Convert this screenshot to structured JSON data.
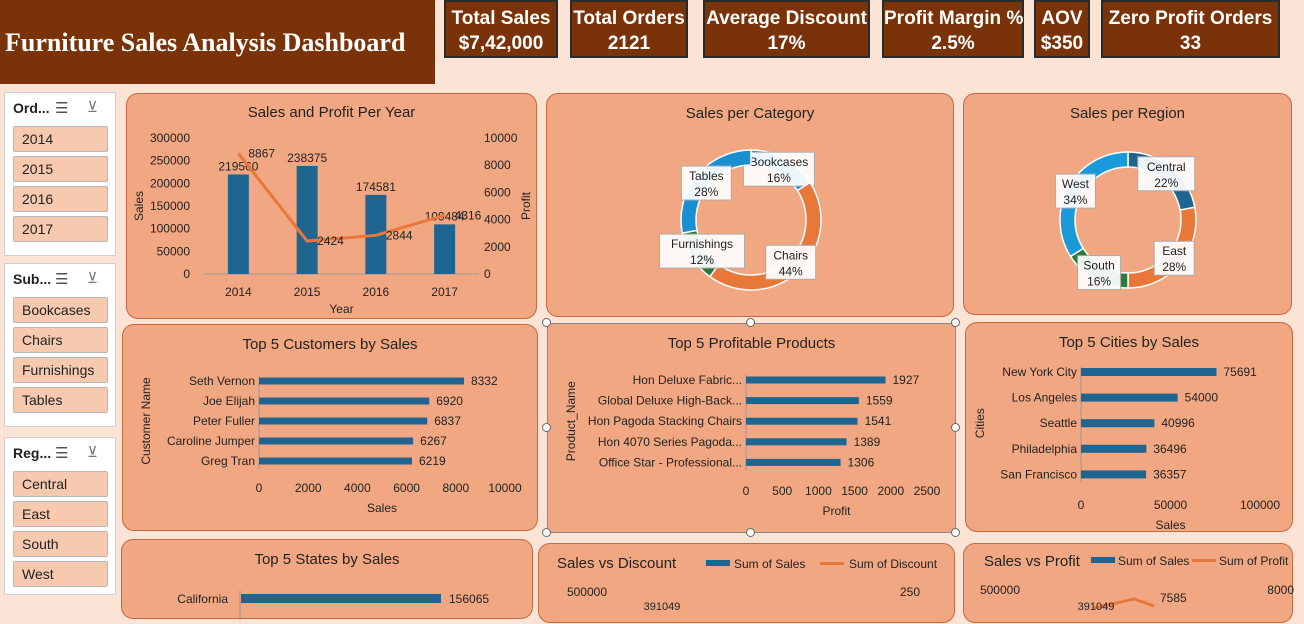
{
  "dashboard": {
    "title": "Furniture Sales Analysis Dashboard",
    "colors": {
      "header": "#7a3208",
      "panel": "#f1a882",
      "bar": "#1f6591",
      "line": "#e8773a",
      "background": "#fbe3d5"
    }
  },
  "kpis": [
    {
      "label": "Total Sales",
      "value": "$7,42,000"
    },
    {
      "label": "Total Orders",
      "value": "2121"
    },
    {
      "label": "Average Discount",
      "value": "17%"
    },
    {
      "label": "Profit Margin %",
      "value": "2.5%"
    },
    {
      "label": "AOV",
      "value": "$350"
    },
    {
      "label": "Zero Profit Orders",
      "value": "33"
    }
  ],
  "slicers": {
    "order": {
      "title": "Ord...",
      "items": [
        "2014",
        "2015",
        "2016",
        "2017"
      ],
      "icons": [
        "multi-select-icon",
        "clear-filter-icon"
      ]
    },
    "subcategory": {
      "title": "Sub...",
      "items": [
        "Bookcases",
        "Chairs",
        "Furnishings",
        "Tables"
      ],
      "icons": [
        "multi-select-icon",
        "clear-filter-icon"
      ]
    },
    "region": {
      "title": "Reg...",
      "items": [
        "Central",
        "East",
        "South",
        "West"
      ],
      "icons": [
        "multi-select-icon",
        "clear-filter-icon"
      ]
    }
  },
  "chart_data": [
    {
      "type": "bar",
      "title": "Sales and Profit Per Year",
      "xlabel": "Year",
      "ylabel": "Sales",
      "y2label": "Profit",
      "categories": [
        "2014",
        "2015",
        "2016",
        "2017"
      ],
      "series": [
        {
          "name": "Sales",
          "type": "bar",
          "values": [
            219560,
            238375,
            174581,
            109484
          ]
        },
        {
          "name": "Profit",
          "type": "line",
          "axis": "secondary",
          "values": [
            8867,
            2424,
            2844,
            4316
          ]
        }
      ],
      "ylim": [
        0,
        300000
      ],
      "y2lim": [
        0,
        10000
      ],
      "yticks": [
        "300000",
        "250000",
        "200000",
        "150000",
        "100000",
        "50000",
        "0"
      ],
      "y2ticks": [
        "10000",
        "8000",
        "6000",
        "4000",
        "2000",
        "0"
      ]
    },
    {
      "type": "pie",
      "title": "Sales per Category",
      "labels": [
        "Bookcases",
        "Chairs",
        "Furnishings",
        "Tables"
      ],
      "values": [
        16,
        44,
        12,
        28
      ],
      "value_labels": [
        "16%",
        "44%",
        "12%",
        "28%"
      ]
    },
    {
      "type": "pie",
      "title": "Sales per Region",
      "labels": [
        "Central",
        "East",
        "South",
        "West"
      ],
      "values": [
        22,
        28,
        16,
        34
      ],
      "value_labels": [
        "22%",
        "28%",
        "16%",
        "34%"
      ]
    },
    {
      "type": "bar",
      "orientation": "horizontal",
      "title": "Top 5 Customers by Sales",
      "xlabel": "Sales",
      "ylabel": "Customer Name",
      "categories": [
        "Seth Vernon",
        "Joe Elijah",
        "Peter Fuller",
        "Caroline Jumper",
        "Greg Tran"
      ],
      "values": [
        8332,
        6920,
        6837,
        6267,
        6219
      ],
      "xlim": [
        0,
        10000
      ],
      "xticks": [
        "0",
        "2000",
        "4000",
        "6000",
        "8000",
        "10000"
      ]
    },
    {
      "type": "bar",
      "orientation": "horizontal",
      "title": "Top 5 Profitable Products",
      "xlabel": "Profit",
      "ylabel": "Product_Name",
      "categories": [
        "Hon Deluxe Fabric...",
        "Global Deluxe High-Back...",
        "Hon Pagoda Stacking Chairs",
        "Hon 4070 Series Pagoda...",
        "Office Star - Professional..."
      ],
      "values": [
        1927,
        1559,
        1541,
        1389,
        1306
      ],
      "xlim": [
        0,
        2500
      ],
      "xticks": [
        "0",
        "500",
        "1000",
        "1500",
        "2000",
        "2500"
      ]
    },
    {
      "type": "bar",
      "orientation": "horizontal",
      "title": "Top 5 Cities by Sales",
      "xlabel": "Sales",
      "ylabel": "Cities",
      "categories": [
        "New York City",
        "Los Angeles",
        "Seattle",
        "Philadelphia",
        "San Francisco"
      ],
      "values": [
        75691,
        54000,
        40996,
        36496,
        36357
      ],
      "xlim": [
        0,
        100000
      ],
      "xticks": [
        "0",
        "50000",
        "100000"
      ]
    },
    {
      "type": "bar",
      "orientation": "horizontal",
      "title": "Top 5 States by Sales",
      "categories": [
        "California"
      ],
      "values": [
        156065
      ]
    },
    {
      "type": "line",
      "title": "Sales vs Discount",
      "legend": [
        "Sum of Sales",
        "Sum of Discount"
      ],
      "yticks": [
        "500000"
      ],
      "y2ticks": [
        "250"
      ],
      "value_labels": [
        "391049"
      ]
    },
    {
      "type": "line",
      "title": "Sales vs Profit",
      "legend": [
        "Sum of Sales",
        "Sum of Profit"
      ],
      "yticks": [
        "500000"
      ],
      "y2ticks": [
        "8000"
      ],
      "value_labels": [
        "391049",
        "7585"
      ]
    }
  ]
}
